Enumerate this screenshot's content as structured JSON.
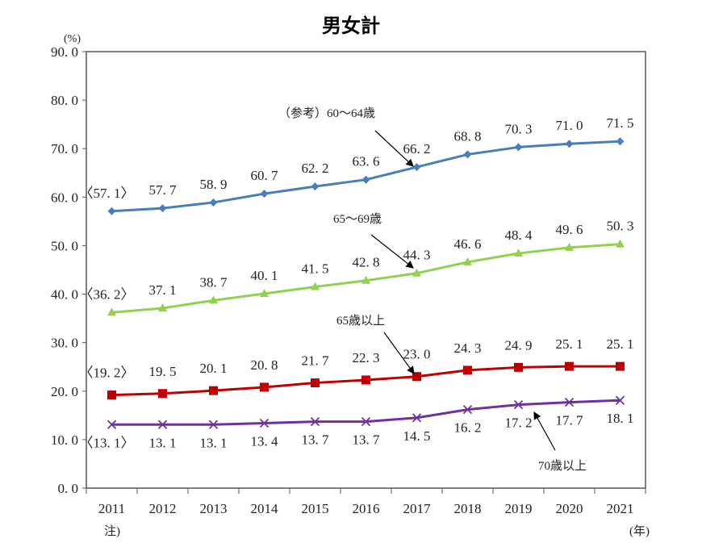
{
  "chart_data": {
    "type": "line",
    "title": "男女計",
    "ylabel": "(%)",
    "xlabel": "(年)",
    "x_note": "注)",
    "categories": [
      "2011",
      "2012",
      "2013",
      "2014",
      "2015",
      "2016",
      "2017",
      "2018",
      "2019",
      "2020",
      "2021"
    ],
    "ylim": [
      0,
      90
    ],
    "yticks": [
      "0.0",
      "10.0",
      "20.0",
      "30.0",
      "40.0",
      "50.0",
      "60.0",
      "70.0",
      "80.0",
      "90.0"
    ],
    "grid": false,
    "legend": "none (annotated with arrows)",
    "series": [
      {
        "name": "（参考）60～64歳",
        "color": "#4a7ebb",
        "marker": "diamond",
        "values": [
          57.1,
          57.7,
          58.9,
          60.7,
          62.2,
          63.6,
          66.2,
          68.8,
          70.3,
          71.0,
          71.5
        ],
        "labels": [
          "〈57.1〉",
          "57.7",
          "58.9",
          "60.7",
          "62.2",
          "63.6",
          "66.2",
          "68.8",
          "70.3",
          "71.0",
          "71.5"
        ]
      },
      {
        "name": "65～69歳",
        "color": "#92d050",
        "marker": "triangle",
        "values": [
          36.2,
          37.1,
          38.7,
          40.1,
          41.5,
          42.8,
          44.3,
          46.6,
          48.4,
          49.6,
          50.3
        ],
        "labels": [
          "〈36.2〉",
          "37.1",
          "38.7",
          "40.1",
          "41.5",
          "42.8",
          "44.3",
          "46.6",
          "48.4",
          "49.6",
          "50.3"
        ]
      },
      {
        "name": "65歳以上",
        "color": "#c00000",
        "marker": "square",
        "values": [
          19.2,
          19.5,
          20.1,
          20.8,
          21.7,
          22.3,
          23.0,
          24.3,
          24.9,
          25.1,
          25.1
        ],
        "labels": [
          "〈19.2〉",
          "19.5",
          "20.1",
          "20.8",
          "21.7",
          "22.3",
          "23.0",
          "24.3",
          "24.9",
          "25.1",
          "25.1"
        ]
      },
      {
        "name": "70歳以上",
        "color": "#7030a0",
        "marker": "x",
        "values": [
          13.1,
          13.1,
          13.1,
          13.4,
          13.7,
          13.7,
          14.5,
          16.2,
          17.2,
          17.7,
          18.1
        ],
        "labels": [
          "〈13.1〉",
          "13.1",
          "13.1",
          "13.4",
          "13.7",
          "13.7",
          "14.5",
          "16.2",
          "17.2",
          "17.7",
          "18.1"
        ]
      }
    ]
  }
}
